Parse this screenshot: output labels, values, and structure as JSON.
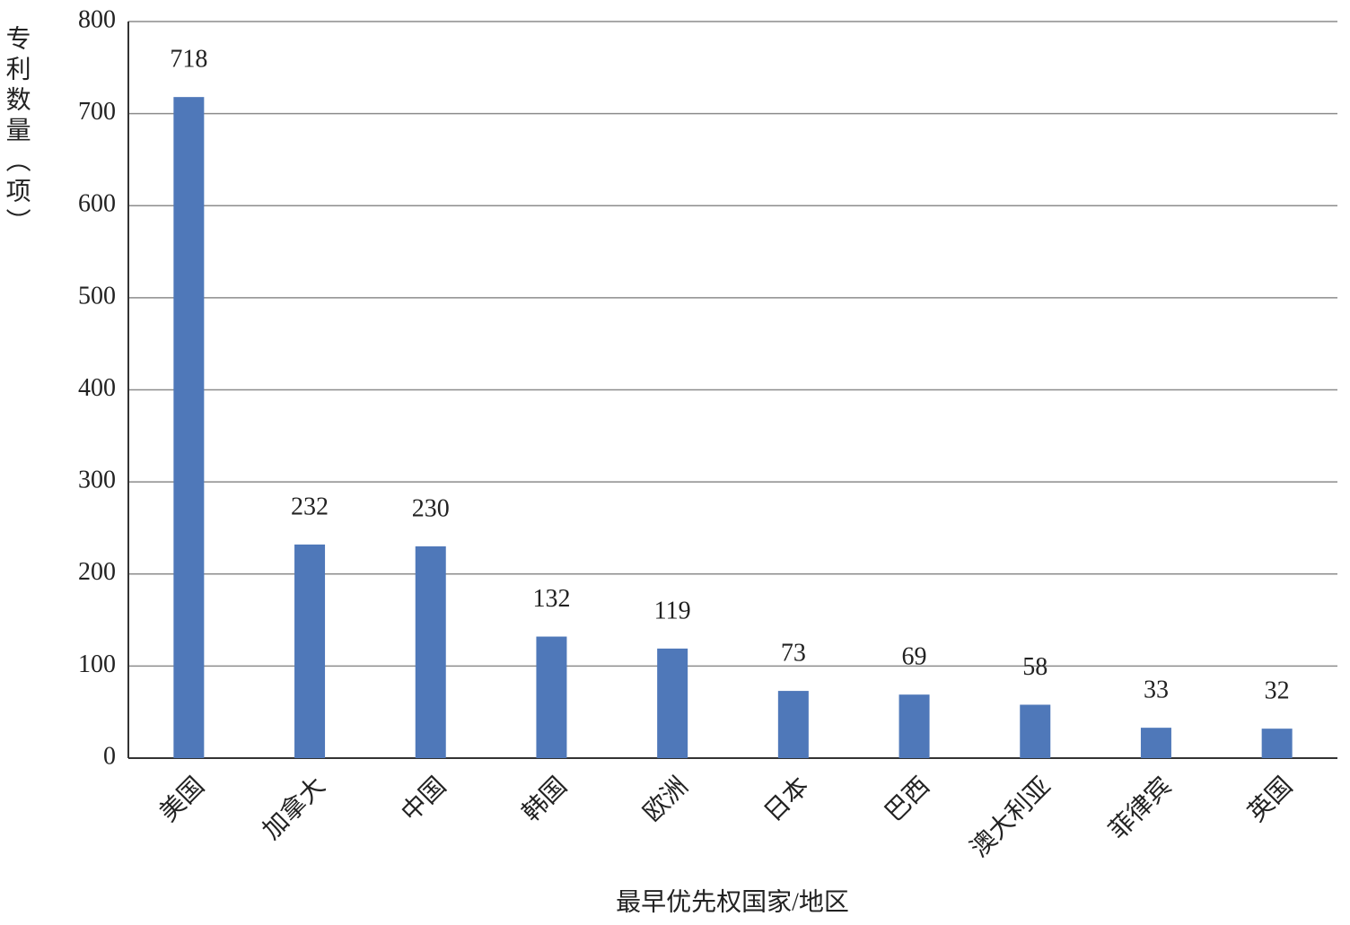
{
  "chart_data": {
    "type": "bar",
    "y_label": "专利数量（项）",
    "x_label": "最早优先权国家/地区",
    "categories": [
      "美国",
      "加拿大",
      "中国",
      "韩国",
      "欧洲",
      "日本",
      "巴西",
      "澳大利亚",
      "菲律宾",
      "英国"
    ],
    "values": [
      718,
      232,
      230,
      132,
      119,
      73,
      69,
      58,
      33,
      32
    ],
    "color": "#4f78b9",
    "ylim": [
      0,
      800
    ],
    "yticks": [
      0,
      100,
      200,
      300,
      400,
      500,
      600,
      700,
      800
    ],
    "grid": true
  }
}
